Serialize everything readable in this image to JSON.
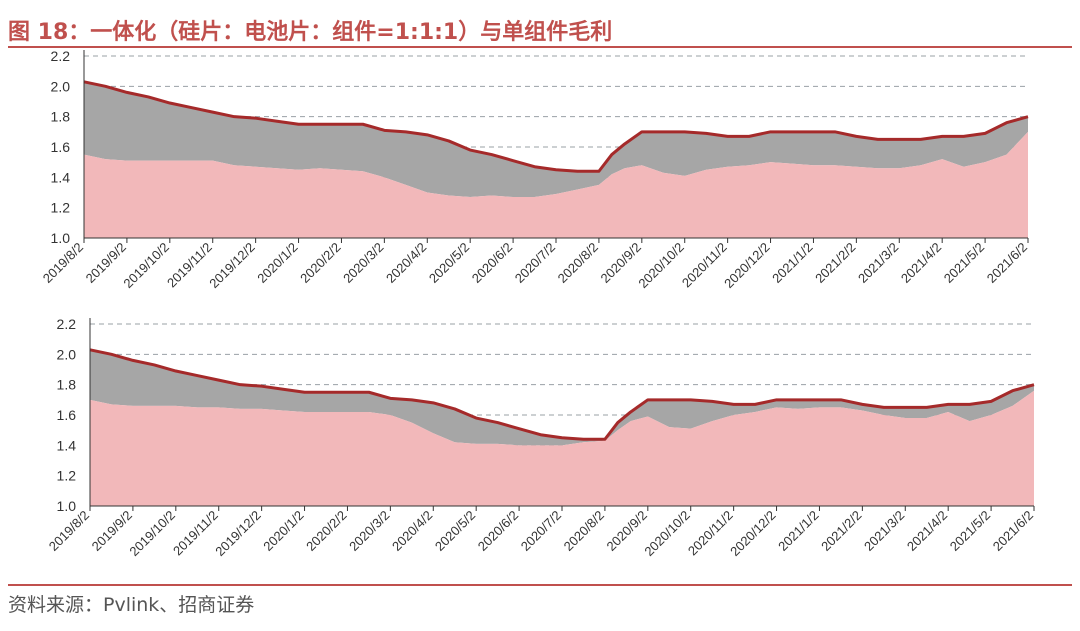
{
  "title": "图 18：一体化（硅片：电池片：组件=1:1:1）与单组件毛利",
  "source": "资料来源：Pvlink、招商证券",
  "colors": {
    "accent": "#c0504d",
    "gray_fill": "#a6a6a6",
    "pink_fill": "#f2b8ba",
    "line": "#a52a2a",
    "grid": "#9aa0a6"
  },
  "chart_data": [
    {
      "type": "area",
      "title": "",
      "ylim": [
        1.0,
        2.2
      ],
      "yticks": [
        "1.0",
        "1.2",
        "1.4",
        "1.6",
        "1.8",
        "2.0",
        "2.2"
      ],
      "grid": "dashed horizontal",
      "legend": "none",
      "x_labels": [
        "2019/8/2",
        "2019/9/2",
        "2019/10/2",
        "2019/11/2",
        "2019/12/2",
        "2020/1/2",
        "2020/2/2",
        "2020/3/2",
        "2020/4/2",
        "2020/5/2",
        "2020/6/2",
        "2020/7/2",
        "2020/8/2",
        "2020/9/2",
        "2020/10/2",
        "2020/11/2",
        "2020/12/2",
        "2021/1/2",
        "2021/2/2",
        "2021/3/2",
        "2021/4/2",
        "2021/5/2",
        "2021/6/2"
      ],
      "x": [
        0,
        0.5,
        1,
        1.5,
        2,
        2.5,
        3,
        3.5,
        4,
        4.5,
        5,
        5.5,
        6,
        6.5,
        7,
        7.5,
        8,
        8.5,
        9,
        9.5,
        10,
        10.5,
        11,
        11.5,
        12,
        12.3,
        12.6,
        13,
        13.5,
        14,
        14.5,
        15,
        15.5,
        16,
        16.5,
        17,
        17.5,
        18,
        18.5,
        19,
        19.5,
        20,
        20.5,
        21,
        21.5,
        22
      ],
      "series": [
        {
          "values": [
            2.03,
            2.0,
            1.96,
            1.93,
            1.89,
            1.86,
            1.83,
            1.8,
            1.79,
            1.77,
            1.75,
            1.75,
            1.75,
            1.75,
            1.71,
            1.7,
            1.68,
            1.64,
            1.58,
            1.55,
            1.51,
            1.47,
            1.45,
            1.44,
            1.44,
            1.55,
            1.62,
            1.7,
            1.7,
            1.7,
            1.69,
            1.67,
            1.67,
            1.7,
            1.7,
            1.7,
            1.7,
            1.67,
            1.65,
            1.65,
            1.65,
            1.67,
            1.67,
            1.69,
            1.76,
            1.8
          ]
        },
        {
          "values": [
            1.55,
            1.52,
            1.51,
            1.51,
            1.51,
            1.51,
            1.51,
            1.48,
            1.47,
            1.46,
            1.45,
            1.46,
            1.45,
            1.44,
            1.4,
            1.35,
            1.3,
            1.28,
            1.27,
            1.28,
            1.27,
            1.27,
            1.29,
            1.32,
            1.35,
            1.42,
            1.46,
            1.48,
            1.43,
            1.41,
            1.45,
            1.47,
            1.48,
            1.5,
            1.49,
            1.48,
            1.48,
            1.47,
            1.46,
            1.46,
            1.48,
            1.52,
            1.47,
            1.5,
            1.55,
            1.7
          ]
        }
      ]
    },
    {
      "type": "area",
      "title": "",
      "ylim": [
        1.0,
        2.2
      ],
      "yticks": [
        "1.0",
        "1.2",
        "1.4",
        "1.6",
        "1.8",
        "2.0",
        "2.2"
      ],
      "grid": "dashed horizontal",
      "legend": "none",
      "x_labels": [
        "2019/8/2",
        "2019/9/2",
        "2019/10/2",
        "2019/11/2",
        "2019/12/2",
        "2020/1/2",
        "2020/2/2",
        "2020/3/2",
        "2020/4/2",
        "2020/5/2",
        "2020/6/2",
        "2020/7/2",
        "2020/8/2",
        "2020/9/2",
        "2020/10/2",
        "2020/11/2",
        "2020/12/2",
        "2021/1/2",
        "2021/2/2",
        "2021/3/2",
        "2021/4/2",
        "2021/5/2",
        "2021/6/2"
      ],
      "x": [
        0,
        0.5,
        1,
        1.5,
        2,
        2.5,
        3,
        3.5,
        4,
        4.5,
        5,
        5.5,
        6,
        6.5,
        7,
        7.5,
        8,
        8.5,
        9,
        9.5,
        10,
        10.5,
        11,
        11.5,
        12,
        12.3,
        12.6,
        13,
        13.5,
        14,
        14.5,
        15,
        15.5,
        16,
        16.5,
        17,
        17.5,
        18,
        18.5,
        19,
        19.5,
        20,
        20.5,
        21,
        21.5,
        22
      ],
      "series": [
        {
          "values": [
            2.03,
            2.0,
            1.96,
            1.93,
            1.89,
            1.86,
            1.83,
            1.8,
            1.79,
            1.77,
            1.75,
            1.75,
            1.75,
            1.75,
            1.71,
            1.7,
            1.68,
            1.64,
            1.58,
            1.55,
            1.51,
            1.47,
            1.45,
            1.44,
            1.44,
            1.55,
            1.62,
            1.7,
            1.7,
            1.7,
            1.69,
            1.67,
            1.67,
            1.7,
            1.7,
            1.7,
            1.7,
            1.67,
            1.65,
            1.65,
            1.65,
            1.67,
            1.67,
            1.69,
            1.76,
            1.8
          ]
        },
        {
          "values": [
            1.7,
            1.67,
            1.66,
            1.66,
            1.66,
            1.65,
            1.65,
            1.64,
            1.64,
            1.63,
            1.62,
            1.62,
            1.62,
            1.62,
            1.6,
            1.55,
            1.48,
            1.42,
            1.41,
            1.41,
            1.4,
            1.4,
            1.4,
            1.42,
            1.43,
            1.5,
            1.56,
            1.59,
            1.52,
            1.51,
            1.56,
            1.6,
            1.62,
            1.65,
            1.64,
            1.65,
            1.65,
            1.63,
            1.6,
            1.58,
            1.58,
            1.62,
            1.56,
            1.6,
            1.66,
            1.76
          ]
        }
      ]
    }
  ]
}
